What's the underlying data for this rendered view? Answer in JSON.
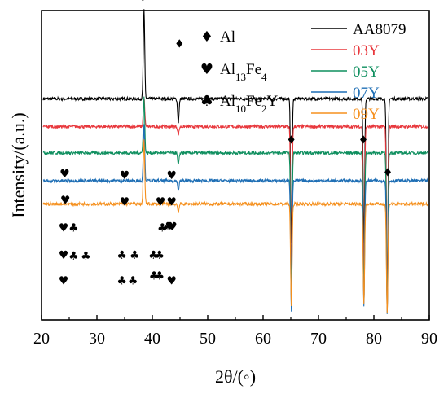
{
  "chart_data": {
    "type": "line",
    "xlabel": "2θ/(◦)",
    "ylabel": "Intensity/(a.u.)",
    "xlim": [
      20,
      90
    ],
    "xticks": [
      20,
      30,
      40,
      50,
      60,
      70,
      80,
      90
    ],
    "grid": false,
    "legend_placement": "top-right",
    "series": [
      {
        "name": "AA8079",
        "color": "#000000",
        "baseline": 0.715,
        "peaks": [
          [
            38.5,
            1.0
          ],
          [
            44.7,
            0.64
          ],
          [
            65.1,
            0.245
          ],
          [
            78.2,
            0.245
          ],
          [
            82.4,
            0.035
          ]
        ]
      },
      {
        "name": "03Y",
        "color": "#e8383d",
        "baseline": 0.625,
        "peaks": [
          [
            38.5,
            0.72
          ],
          [
            44.7,
            0.6
          ],
          [
            65.1,
            0.155
          ],
          [
            78.2,
            0.16
          ],
          [
            82.4,
            0.04
          ]
        ]
      },
      {
        "name": "05Y",
        "color": "#0f8f5f",
        "baseline": 0.54,
        "peaks": [
          [
            38.5,
            0.72
          ],
          [
            44.7,
            0.5
          ],
          [
            65.1,
            0.07
          ],
          [
            78.2,
            0.075
          ],
          [
            82.4,
            0.03
          ]
        ]
      },
      {
        "name": "07Y",
        "color": "#1f6fb5",
        "baseline": 0.45,
        "peaks": [
          [
            38.5,
            0.63
          ],
          [
            44.7,
            0.42
          ],
          [
            65.1,
            0.03
          ],
          [
            78.2,
            0.04
          ],
          [
            82.4,
            0.02
          ]
        ]
      },
      {
        "name": "09Y",
        "color": "#f5901e",
        "baseline": 0.375,
        "peaks": [
          [
            38.5,
            0.58
          ],
          [
            44.7,
            0.35
          ],
          [
            65.1,
            0.045
          ],
          [
            78.2,
            0.055
          ],
          [
            82.4,
            0.02
          ]
        ]
      }
    ],
    "phases": [
      {
        "symbol": "♦",
        "name": "Al",
        "icon": "diamond-icon"
      },
      {
        "symbol": "♥",
        "name_main": "Al",
        "sub1": "13",
        "name_mid": "Fe",
        "sub2": "4",
        "icon": "heart-icon"
      },
      {
        "symbol": "♣",
        "name_main": "Al",
        "sub1": "10",
        "name_mid": "Fe",
        "sub2": "2",
        "name_end": "Y",
        "icon": "club-icon"
      }
    ],
    "annotations": [
      {
        "symbol": "♦",
        "x": 38.3,
        "y": 1.03
      },
      {
        "symbol": "♦",
        "x": 44.9,
        "y": 0.88
      },
      {
        "symbol": "♦",
        "x": 65.1,
        "y": 0.57
      },
      {
        "symbol": "♦",
        "x": 78.1,
        "y": 0.57
      },
      {
        "symbol": "♦",
        "x": 82.5,
        "y": 0.465
      },
      {
        "symbol": "♥",
        "x": 24.2,
        "y": 0.46
      },
      {
        "symbol": "♥",
        "x": 35.0,
        "y": 0.455
      },
      {
        "symbol": "♥",
        "x": 43.5,
        "y": 0.455
      },
      {
        "symbol": "♥",
        "x": 24.3,
        "y": 0.375
      },
      {
        "symbol": "♥",
        "x": 35.0,
        "y": 0.37
      },
      {
        "symbol": "♥",
        "x": 41.5,
        "y": 0.37
      },
      {
        "symbol": "♥",
        "x": 43.5,
        "y": 0.37
      },
      {
        "symbol": "♥",
        "x": 24.0,
        "y": 0.285
      },
      {
        "symbol": "♣",
        "x": 25.8,
        "y": 0.285
      },
      {
        "symbol": "♣",
        "x": 41.8,
        "y": 0.285
      },
      {
        "symbol": "♣",
        "x": 42.8,
        "y": 0.29
      },
      {
        "symbol": "♥",
        "x": 43.6,
        "y": 0.29
      },
      {
        "symbol": "♥",
        "x": 24.0,
        "y": 0.198
      },
      {
        "symbol": "♣",
        "x": 25.8,
        "y": 0.195
      },
      {
        "symbol": "♣",
        "x": 28.0,
        "y": 0.195
      },
      {
        "symbol": "♣",
        "x": 34.5,
        "y": 0.198
      },
      {
        "symbol": "♣",
        "x": 36.8,
        "y": 0.198
      },
      {
        "symbol": "♣",
        "x": 40.2,
        "y": 0.198
      },
      {
        "symbol": "♣",
        "x": 41.3,
        "y": 0.198
      },
      {
        "symbol": "♥",
        "x": 24.0,
        "y": 0.115
      },
      {
        "symbol": "♣",
        "x": 34.5,
        "y": 0.115
      },
      {
        "symbol": "♣",
        "x": 36.5,
        "y": 0.115
      },
      {
        "symbol": "♣",
        "x": 40.3,
        "y": 0.13
      },
      {
        "symbol": "♣",
        "x": 41.3,
        "y": 0.13
      },
      {
        "symbol": "♥",
        "x": 43.5,
        "y": 0.115
      }
    ]
  }
}
